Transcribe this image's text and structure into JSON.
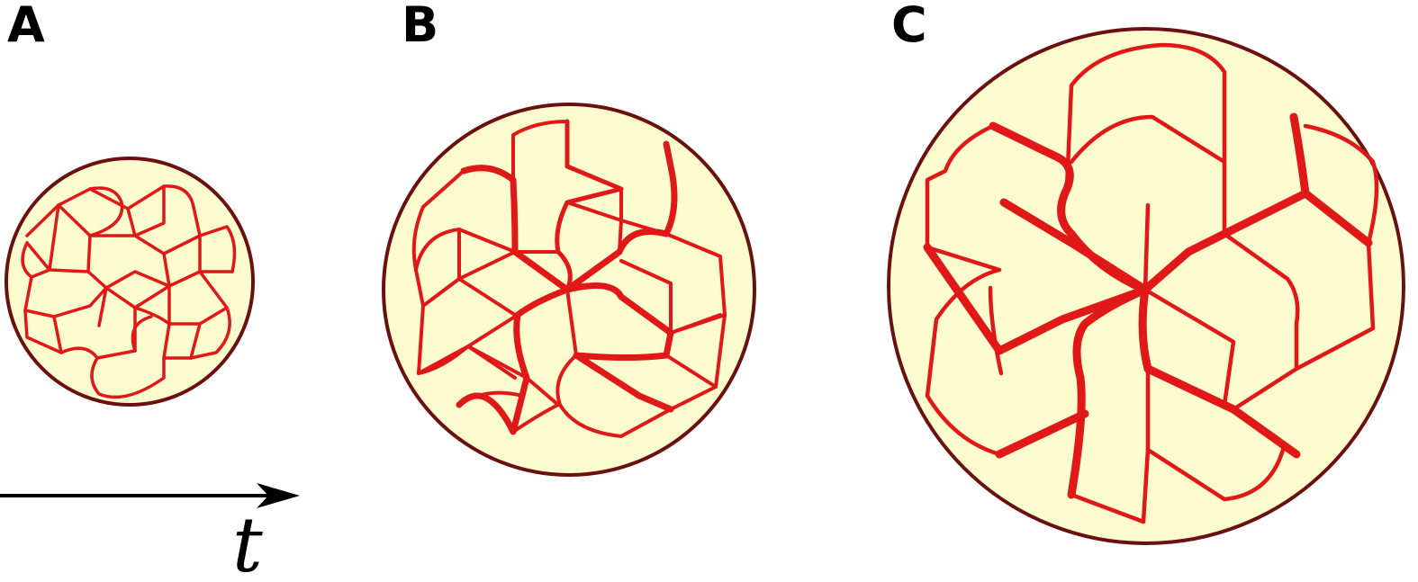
{
  "panels": [
    {
      "label": "A"
    },
    {
      "label": "B"
    },
    {
      "label": "C"
    }
  ],
  "time_axis": {
    "label": "t"
  },
  "colors": {
    "dish_fill": "#fdfccf",
    "dish_border": "#6b1010",
    "vessel": "#e01818",
    "arrow": "#000000"
  }
}
